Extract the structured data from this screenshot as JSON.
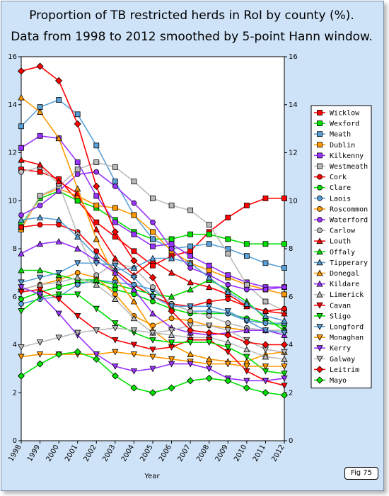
{
  "chart_data": {
    "type": "line",
    "title": "Proportion of TB restricted herds in RoI by county (%).",
    "subtitle": "Data from 1998 to 2012 smoothed by 5-point Hann window.",
    "xlabel": "Year",
    "ylabel": "",
    "x": [
      "1998",
      "1999",
      "2000",
      "2001",
      "2002",
      "2003",
      "2004",
      "2005",
      "2006",
      "2007",
      "2008",
      "2009",
      "2010",
      "2011",
      "2012"
    ],
    "ylim": [
      0,
      16
    ],
    "yticks": [
      "0",
      "2",
      "4",
      "6",
      "8",
      "10",
      "12",
      "14",
      "16"
    ],
    "grid": false,
    "legend_position": "right",
    "series": [
      {
        "name": "Wicklow",
        "color": "#ff0000",
        "marker": "square",
        "values": [
          11.3,
          11.2,
          10.9,
          10.0,
          9.1,
          8.5,
          7.9,
          7.3,
          7.7,
          7.9,
          8.7,
          9.3,
          9.8,
          10.1,
          10.1
        ]
      },
      {
        "name": "Wexford",
        "color": "#00e000",
        "marker": "square",
        "values": [
          9.0,
          10.1,
          10.4,
          10.0,
          9.7,
          9.2,
          8.7,
          8.4,
          8.4,
          8.6,
          8.6,
          8.4,
          8.2,
          8.2,
          8.2
        ]
      },
      {
        "name": "Meath",
        "color": "#5aa0d8",
        "marker": "square",
        "values": [
          13.1,
          13.9,
          14.2,
          13.6,
          12.3,
          10.8,
          9.4,
          8.4,
          8.0,
          8.1,
          8.2,
          8.0,
          7.7,
          7.4,
          7.2
        ]
      },
      {
        "name": "Dublin",
        "color": "#ff9900",
        "marker": "square",
        "values": [
          8.8,
          10.2,
          10.5,
          10.2,
          9.8,
          9.7,
          9.4,
          8.7,
          7.9,
          7.4,
          7.1,
          6.8,
          6.5,
          6.3,
          6.1
        ]
      },
      {
        "name": "Kilkenny",
        "color": "#9933ff",
        "marker": "square",
        "values": [
          12.2,
          12.7,
          12.6,
          11.6,
          10.2,
          9.1,
          8.6,
          8.1,
          8.2,
          7.7,
          7.3,
          6.9,
          6.6,
          6.4,
          6.4
        ]
      },
      {
        "name": "Westmeath",
        "color": "#bbbbbb",
        "marker": "square",
        "values": [
          8.9,
          10.2,
          10.6,
          11.3,
          11.6,
          11.4,
          10.8,
          10.1,
          9.8,
          9.6,
          9.0,
          7.8,
          6.5,
          5.8,
          5.4
        ]
      },
      {
        "name": "Cork",
        "color": "#ff0000",
        "marker": "circle",
        "values": [
          8.9,
          9.0,
          9.0,
          8.7,
          7.9,
          7.1,
          6.5,
          6.0,
          5.7,
          5.6,
          5.8,
          5.9,
          5.6,
          5.4,
          5.5
        ]
      },
      {
        "name": "Clare",
        "color": "#00e000",
        "marker": "circle",
        "values": [
          5.9,
          6.2,
          6.4,
          6.6,
          6.6,
          6.3,
          6.1,
          5.8,
          5.5,
          5.3,
          5.3,
          5.3,
          5.1,
          4.9,
          4.8
        ]
      },
      {
        "name": "Laois",
        "color": "#5aa0d8",
        "marker": "circle",
        "values": [
          5.7,
          5.9,
          6.0,
          6.5,
          6.7,
          6.6,
          6.5,
          6.3,
          5.7,
          5.4,
          5.4,
          5.3,
          5.0,
          4.9,
          4.9
        ]
      },
      {
        "name": "Roscommon",
        "color": "#ff9900",
        "marker": "circle",
        "values": [
          6.3,
          6.5,
          6.7,
          7.0,
          6.8,
          6.1,
          5.2,
          4.8,
          5.1,
          5.0,
          4.8,
          4.7,
          4.6,
          4.6,
          4.6
        ]
      },
      {
        "name": "Waterford",
        "color": "#9933ff",
        "marker": "circle",
        "values": [
          9.4,
          9.8,
          10.4,
          11.1,
          11.2,
          10.6,
          9.9,
          9.1,
          8.0,
          7.2,
          6.9,
          6.5,
          6.3,
          6.3,
          6.4
        ]
      },
      {
        "name": "Carlow",
        "color": "#bbbbbb",
        "marker": "circle",
        "values": [
          11.2,
          11.4,
          10.7,
          8.6,
          6.9,
          7.4,
          7.2,
          6.4,
          5.7,
          5.4,
          5.2,
          4.9,
          4.7,
          4.6,
          4.6
        ]
      },
      {
        "name": "Louth",
        "color": "#ff0000",
        "marker": "triangle",
        "values": [
          11.7,
          11.5,
          10.8,
          10.3,
          8.8,
          7.6,
          6.9,
          7.5,
          7.0,
          6.6,
          6.4,
          6.1,
          5.6,
          5.4,
          5.3
        ]
      },
      {
        "name": "Offaly",
        "color": "#00e000",
        "marker": "triangle",
        "values": [
          7.1,
          7.1,
          6.9,
          6.7,
          6.7,
          6.5,
          6.3,
          6.1,
          6.0,
          6.3,
          6.7,
          6.3,
          5.8,
          5.1,
          4.6
        ]
      },
      {
        "name": "Tipperary",
        "color": "#5aa0d8",
        "marker": "triangle",
        "values": [
          9.2,
          9.3,
          9.2,
          8.5,
          7.7,
          7.1,
          7.2,
          7.6,
          7.6,
          7.4,
          6.8,
          6.2,
          5.7,
          5.2,
          5.0
        ]
      },
      {
        "name": "Donegal",
        "color": "#ff9900",
        "marker": "triangle",
        "values": [
          14.3,
          13.7,
          12.6,
          10.5,
          8.4,
          6.8,
          5.8,
          4.6,
          4.0,
          3.6,
          3.4,
          3.3,
          3.3,
          3.6,
          3.7
        ]
      },
      {
        "name": "Kildare",
        "color": "#9933ff",
        "marker": "triangle",
        "values": [
          7.8,
          8.2,
          8.3,
          8.0,
          7.5,
          7.0,
          6.3,
          5.3,
          4.7,
          4.5,
          4.4,
          4.5,
          4.6,
          4.6,
          4.4
        ]
      },
      {
        "name": "Limerick",
        "color": "#bbbbbb",
        "marker": "triangle",
        "values": [
          6.3,
          6.5,
          6.6,
          6.8,
          6.5,
          5.9,
          5.1,
          4.5,
          4.4,
          4.3,
          4.3,
          4.1,
          3.8,
          3.5,
          3.4
        ]
      },
      {
        "name": "Cavan",
        "color": "#ff0000",
        "marker": "triangle-down",
        "values": [
          6.2,
          6.3,
          5.9,
          5.2,
          4.6,
          4.2,
          4.0,
          3.8,
          3.9,
          4.2,
          4.2,
          3.7,
          2.9,
          2.5,
          2.3
        ]
      },
      {
        "name": "Sligo",
        "color": "#00e000",
        "marker": "triangle-down",
        "values": [
          5.4,
          6.0,
          6.1,
          6.1,
          5.5,
          4.9,
          4.5,
          4.2,
          4.1,
          4.1,
          4.1,
          3.9,
          3.5,
          2.9,
          2.8
        ]
      },
      {
        "name": "Longford",
        "color": "#5aa0d8",
        "marker": "triangle-down",
        "values": [
          6.6,
          6.8,
          7.0,
          7.4,
          7.4,
          7.3,
          6.8,
          6.0,
          5.6,
          5.6,
          5.6,
          5.4,
          5.0,
          4.6,
          4.5
        ]
      },
      {
        "name": "Monaghan",
        "color": "#ff9900",
        "marker": "triangle-down",
        "values": [
          3.5,
          3.6,
          3.6,
          3.6,
          3.6,
          3.7,
          3.6,
          3.5,
          3.4,
          3.3,
          3.2,
          3.2,
          3.1,
          3.1,
          3.1
        ]
      },
      {
        "name": "Kerry",
        "color": "#9933ff",
        "marker": "triangle-down",
        "values": [
          6.4,
          6.1,
          5.3,
          4.4,
          3.6,
          3.1,
          2.9,
          3.0,
          3.2,
          3.2,
          3.0,
          2.6,
          2.5,
          2.5,
          2.6
        ]
      },
      {
        "name": "Galway",
        "color": "#bbbbbb",
        "marker": "triangle-down",
        "values": [
          3.9,
          4.1,
          4.3,
          4.5,
          4.6,
          4.7,
          4.6,
          4.5,
          4.6,
          4.8,
          4.8,
          4.6,
          4.2,
          3.8,
          3.7
        ]
      },
      {
        "name": "Leitrim",
        "color": "#ff0000",
        "marker": "diamond",
        "values": [
          15.4,
          15.6,
          15.0,
          13.2,
          10.6,
          8.7,
          7.5,
          6.8,
          5.4,
          4.6,
          4.5,
          4.4,
          4.1,
          4.0,
          4.0
        ]
      },
      {
        "name": "Mayo",
        "color": "#00e000",
        "marker": "diamond",
        "values": [
          2.7,
          3.2,
          3.6,
          3.7,
          3.4,
          2.7,
          2.2,
          2.0,
          2.2,
          2.5,
          2.6,
          2.5,
          2.2,
          2.0,
          1.9
        ]
      }
    ]
  },
  "figure_label": "Fig 75"
}
